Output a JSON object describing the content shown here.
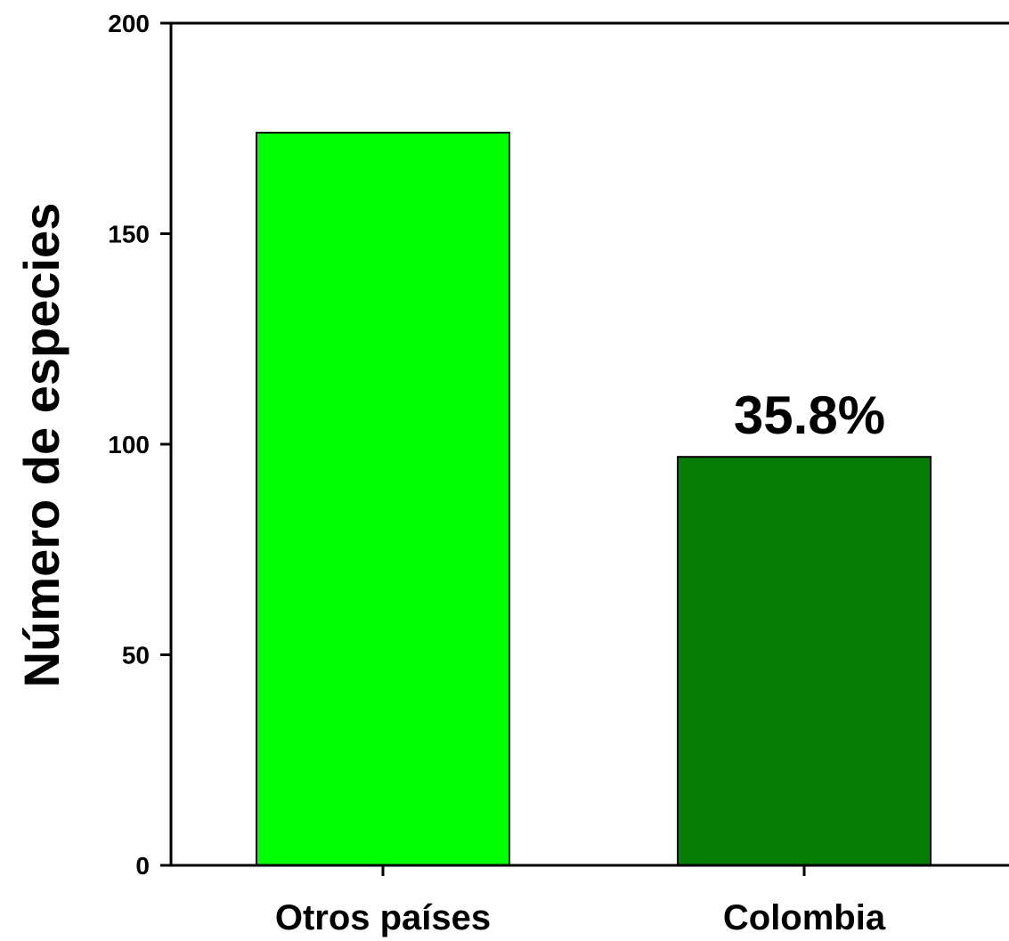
{
  "chart_data": {
    "type": "bar",
    "title": "",
    "xlabel": "",
    "ylabel": "Número de especies",
    "ylim": [
      0,
      200
    ],
    "yticks": [
      0,
      50,
      100,
      150,
      200
    ],
    "categories": [
      "Otros países",
      "Colombia"
    ],
    "values": [
      174,
      97
    ],
    "bar_colors": [
      "#00ff00",
      "#067d06"
    ],
    "data_labels": [
      "",
      "35.8%"
    ],
    "grid": false,
    "legend": "none"
  }
}
